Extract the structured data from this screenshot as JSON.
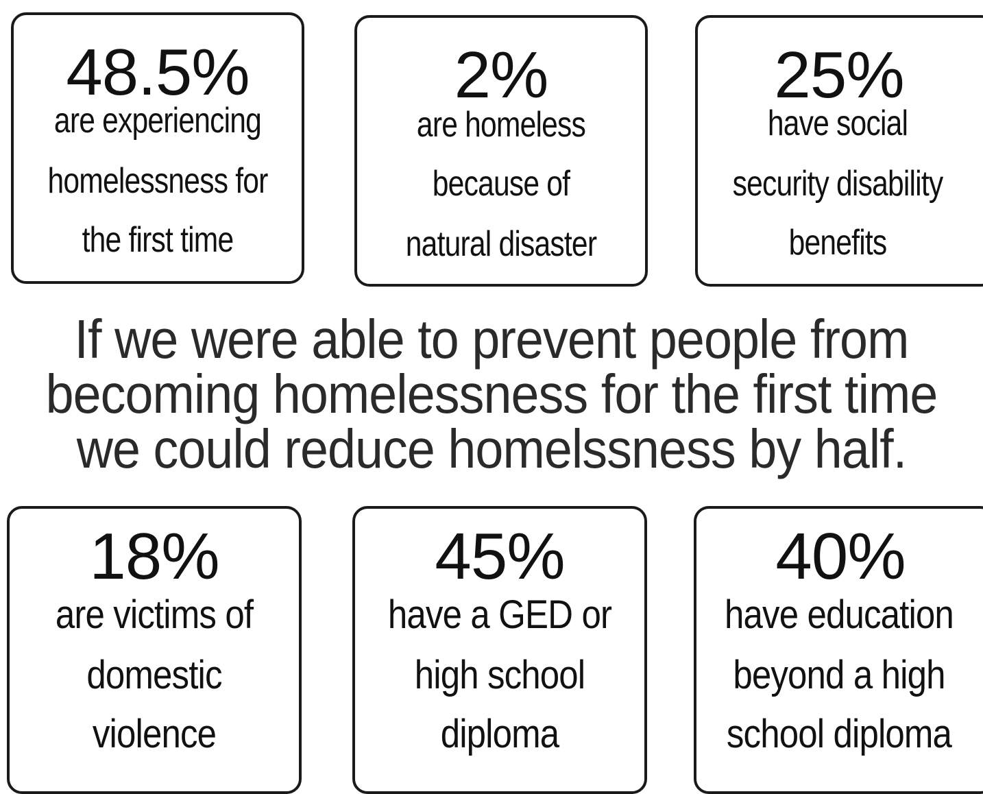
{
  "top_stats": [
    {
      "value": "48.5%",
      "lines": [
        "are experiencing",
        "homelessness for",
        "the first time"
      ]
    },
    {
      "value": "2%",
      "lines": [
        "are homeless",
        "because of",
        "natural disaster"
      ]
    },
    {
      "value": "25%",
      "lines": [
        "have social",
        "security disability",
        "benefits"
      ]
    }
  ],
  "message": {
    "lines": [
      "If we were able to prevent people from",
      "becoming homelessness for the first time",
      "we could reduce homelssness by half."
    ]
  },
  "bottom_stats": [
    {
      "value": "18%",
      "lines": [
        "are victims of",
        "domestic",
        "violence"
      ]
    },
    {
      "value": "45%",
      "lines": [
        "have  a GED or",
        "high school",
        "diploma"
      ]
    },
    {
      "value": "40%",
      "lines": [
        "have education",
        "beyond a high",
        "school diploma"
      ]
    }
  ]
}
